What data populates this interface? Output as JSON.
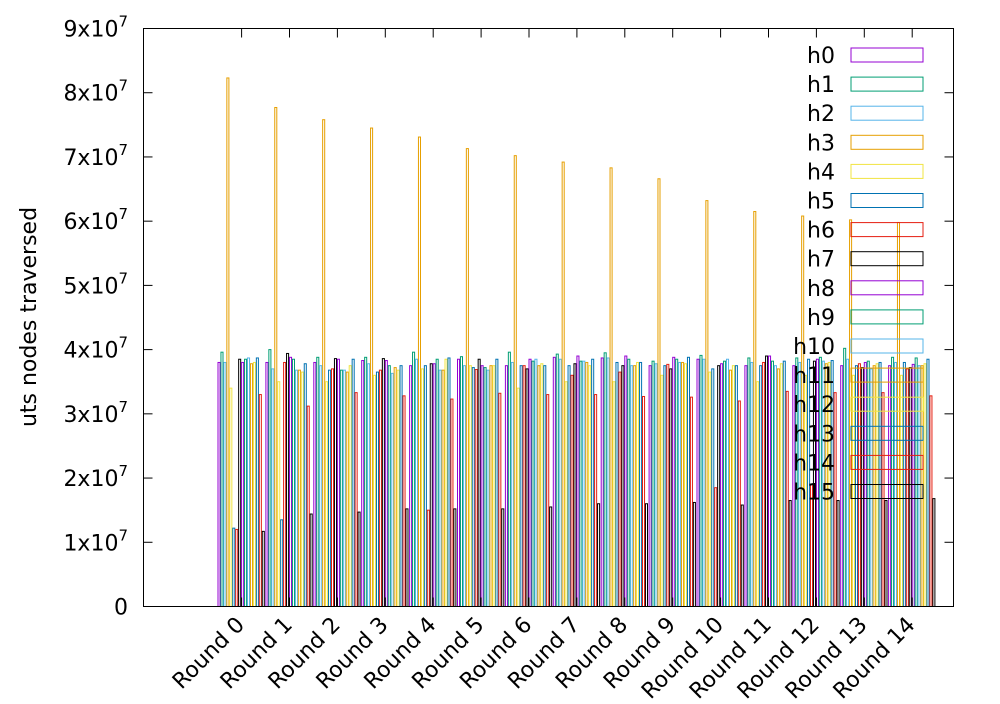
{
  "chart_data": {
    "type": "bar",
    "ylabel": "uts nodes traversed",
    "xlabel": "",
    "ylim": [
      0,
      90000000
    ],
    "grid": false,
    "legend_position": "top-right",
    "y_ticks": [
      {
        "value": 0,
        "base": "0",
        "exp": ""
      },
      {
        "value": 10000000,
        "base": "1x10",
        "exp": "7"
      },
      {
        "value": 20000000,
        "base": "2x10",
        "exp": "7"
      },
      {
        "value": 30000000,
        "base": "3x10",
        "exp": "7"
      },
      {
        "value": 40000000,
        "base": "4x10",
        "exp": "7"
      },
      {
        "value": 50000000,
        "base": "5x10",
        "exp": "7"
      },
      {
        "value": 60000000,
        "base": "6x10",
        "exp": "7"
      },
      {
        "value": 70000000,
        "base": "7x10",
        "exp": "7"
      },
      {
        "value": 80000000,
        "base": "8x10",
        "exp": "7"
      },
      {
        "value": 90000000,
        "base": "9x10",
        "exp": "7"
      }
    ],
    "categories": [
      "Round 0",
      "Round 1",
      "Round 2",
      "Round 3",
      "Round 4",
      "Round 5",
      "Round 6",
      "Round 7",
      "Round 8",
      "Round 9",
      "Round 10",
      "Round 11",
      "Round 12",
      "Round 13",
      "Round 14"
    ],
    "series": [
      {
        "name": "h0",
        "color": "#9400d3",
        "values": [
          38000000,
          38000000,
          38000000,
          38300000,
          37500000,
          38500000,
          37500000,
          38800000,
          38700000,
          37500000,
          38500000,
          37500000,
          37500000,
          37500000,
          37500000
        ]
      },
      {
        "name": "h1",
        "color": "#009e73",
        "values": [
          39600000,
          40000000,
          38800000,
          38800000,
          39600000,
          38900000,
          39600000,
          39300000,
          39500000,
          38200000,
          39100000,
          38700000,
          38700000,
          40200000,
          38800000
        ]
      },
      {
        "name": "h2",
        "color": "#56b4e9",
        "values": [
          38000000,
          37000000,
          37500000,
          37800000,
          38500000,
          37500000,
          38000000,
          38500000,
          38700000,
          37800000,
          38500000,
          38000000,
          38000000,
          38500000,
          38000000
        ]
      },
      {
        "name": "h3",
        "color": "#e69f00",
        "values": [
          82300000,
          77700000,
          75800000,
          74500000,
          73100000,
          71300000,
          70200000,
          69200000,
          68300000,
          66600000,
          63200000,
          61500000,
          60800000,
          60200000,
          59800000
        ]
      },
      {
        "name": "h4",
        "color": "#f0e442",
        "values": [
          34000000,
          35000000,
          35000000,
          36000000,
          37000000,
          37500000,
          34000000,
          35000000,
          35000000,
          36000000,
          36500000,
          35000000,
          36000000,
          36000000,
          36000000
        ]
      },
      {
        "name": "h5",
        "color": "#0072b2",
        "values": [
          12200000,
          13500000,
          36800000,
          36500000,
          37500000,
          37200000,
          37500000,
          37500000,
          38000000,
          37500000,
          37000000,
          37500000,
          38500000,
          37500000,
          38000000
        ]
      },
      {
        "name": "h6",
        "color": "#e51e10",
        "values": [
          12000000,
          38000000,
          37000000,
          36800000,
          15000000,
          36900000,
          37500000,
          36000000,
          36500000,
          37700000,
          18500000,
          38000000,
          19000000,
          37800000,
          37000000
        ]
      },
      {
        "name": "h7",
        "color": "#000000",
        "values": [
          38500000,
          39400000,
          38600000,
          38600000,
          37800000,
          38500000,
          37000000,
          37800000,
          37500000,
          37000000,
          37500000,
          39000000,
          38200000,
          37200000,
          37200000
        ]
      },
      {
        "name": "h8",
        "color": "#9400d3",
        "values": [
          38000000,
          38800000,
          38500000,
          38300000,
          37800000,
          37500000,
          38500000,
          39000000,
          39000000,
          38800000,
          37800000,
          39000000,
          38500000,
          38000000,
          37700000
        ]
      },
      {
        "name": "h9",
        "color": "#009e73",
        "values": [
          38500000,
          38500000,
          36800000,
          37500000,
          38500000,
          37200000,
          38200000,
          38200000,
          38500000,
          38500000,
          38200000,
          38200000,
          38800000,
          38200000,
          38700000
        ]
      },
      {
        "name": "h10",
        "color": "#56b4e9",
        "values": [
          38700000,
          36800000,
          36800000,
          36300000,
          36800000,
          36800000,
          38500000,
          38200000,
          37500000,
          38000000,
          38500000,
          37500000,
          38200000,
          37000000,
          37500000
        ]
      },
      {
        "name": "h11",
        "color": "#e69f00",
        "values": [
          37800000,
          36800000,
          36500000,
          37200000,
          36800000,
          37500000,
          37500000,
          38000000,
          37500000,
          38000000,
          36800000,
          37000000,
          37800000,
          37500000,
          37500000
        ]
      },
      {
        "name": "h12",
        "color": "#f0e442",
        "values": [
          38000000,
          36500000,
          37500000,
          36800000,
          38500000,
          37500000,
          37800000,
          37500000,
          38000000,
          37800000,
          37500000,
          37800000,
          38000000,
          37800000,
          37800000
        ]
      },
      {
        "name": "h13",
        "color": "#0072b2",
        "values": [
          38700000,
          37800000,
          38500000,
          37500000,
          38700000,
          38500000,
          37500000,
          38500000,
          38000000,
          38800000,
          37500000,
          38200000,
          38300000,
          38000000,
          38500000
        ]
      },
      {
        "name": "h14",
        "color": "#e51e10",
        "values": [
          33000000,
          31200000,
          33300000,
          32800000,
          32300000,
          33200000,
          33000000,
          33000000,
          32700000,
          32600000,
          32000000,
          33500000,
          33300000,
          33300000,
          32800000
        ]
      },
      {
        "name": "h15",
        "color": "#000000",
        "values": [
          11700000,
          14400000,
          14700000,
          15200000,
          15200000,
          15200000,
          15500000,
          16000000,
          16000000,
          16200000,
          15800000,
          16500000,
          16500000,
          16500000,
          16800000
        ]
      }
    ]
  }
}
